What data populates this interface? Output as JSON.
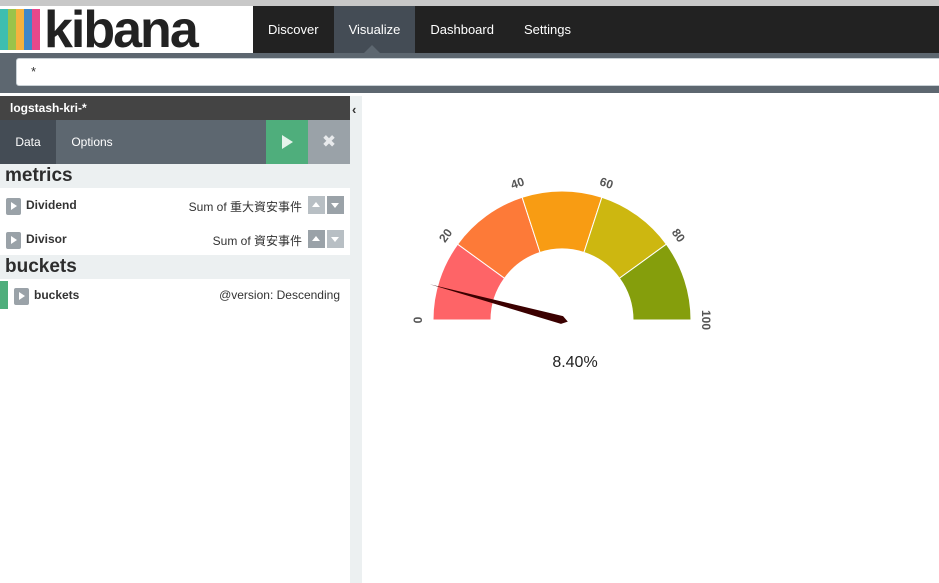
{
  "app": {
    "brand": "kibana",
    "brand_bar_colors": [
      "#3ebeb0",
      "#e8488b",
      "#9ac34a",
      "#f4b23f",
      "#3f87c9"
    ]
  },
  "nav": {
    "tabs": [
      {
        "label": "Discover"
      },
      {
        "label": "Visualize"
      },
      {
        "label": "Dashboard"
      },
      {
        "label": "Settings"
      }
    ],
    "active_tab": "Visualize"
  },
  "query": {
    "value": "*"
  },
  "sidebar": {
    "index_pattern": "logstash-kri-*",
    "tabs": {
      "data": "Data",
      "options": "Options"
    },
    "apply_icon": "play-icon",
    "discard_icon": "close-icon",
    "metrics_heading": "metrics",
    "metrics": [
      {
        "name": "Dividend",
        "description": "Sum of 重大資安事件"
      },
      {
        "name": "Divisor",
        "description": "Sum of 資安事件"
      }
    ],
    "buckets_heading": "buckets",
    "buckets": [
      {
        "name": "buckets",
        "description": "@version: Descending"
      }
    ]
  },
  "gauge": {
    "tick_labels": [
      "0",
      "20",
      "40",
      "60",
      "80",
      "100"
    ],
    "value_label": "8.40%",
    "value": 8.4,
    "min": 0,
    "max": 100,
    "band_colors": [
      "#fe6467",
      "#fd7a38",
      "#f89c13",
      "#cdb710",
      "#859e0c"
    ],
    "needle_color": "#3b0000"
  }
}
